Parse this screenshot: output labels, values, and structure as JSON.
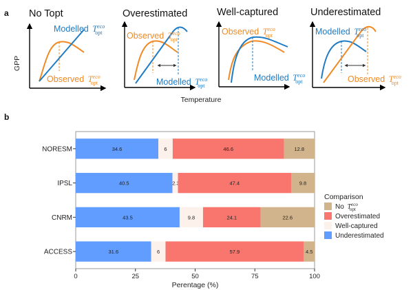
{
  "panel_a": {
    "label": "a",
    "y_axis_label": "GPP",
    "x_axis_label": "Temperature",
    "colors": {
      "observed": "#f08a24",
      "modelled": "#1f7bc4",
      "arrow": "#333333"
    },
    "subplots": [
      {
        "title": "No Topt",
        "modelled_label": "Modelled",
        "observed_label": "Observed",
        "tex": "T",
        "sup": "eco",
        "sub": "opt"
      },
      {
        "title": "Overestimated",
        "modelled_label": "Modelled",
        "observed_label": "Observed",
        "tex": "T",
        "sup": "eco",
        "sub": "opt"
      },
      {
        "title": "Well-captured",
        "modelled_label": "Modelled",
        "observed_label": "Observed",
        "tex": "T",
        "sup": "eco",
        "sub": "opt"
      },
      {
        "title": "Underestimated",
        "modelled_label": "Modelled",
        "observed_label": "Observed",
        "tex": "T",
        "sup": "eco",
        "sub": "opt"
      }
    ]
  },
  "panel_b": {
    "label": "b"
  },
  "chart_data": {
    "type": "bar",
    "orientation": "horizontal",
    "stacked": true,
    "title": "",
    "xlabel": "Perentage (%)",
    "ylabel": "",
    "xlim": [
      0,
      100
    ],
    "xticks": [
      0,
      25,
      50,
      75,
      100
    ],
    "xtick_labels": [
      "0",
      "25",
      "50",
      "75",
      "100"
    ],
    "grid": false,
    "categories": [
      "NORESM",
      "IPSL",
      "CNRM",
      "ACCESS"
    ],
    "series": [
      {
        "name": "Underestimated",
        "color": "#619cff",
        "values": [
          34.6,
          40.5,
          43.5,
          31.6
        ]
      },
      {
        "name": "Well-captured",
        "color": "#fdf1ec",
        "values": [
          6,
          2.3,
          9.8,
          6
        ]
      },
      {
        "name": "Overestimated",
        "color": "#f8766d",
        "values": [
          46.6,
          47.4,
          24.1,
          57.9
        ]
      },
      {
        "name": "No T_opt^eco",
        "color": "#d2b48c",
        "values": [
          12.8,
          9.8,
          22.6,
          4.5
        ]
      }
    ],
    "legend": {
      "title": "Comparison",
      "placement": "right",
      "entries": [
        {
          "series": "No T_opt^eco",
          "text": "No",
          "tex": "T",
          "sup": "eco",
          "sub": "opt",
          "color": "#d2b48c"
        },
        {
          "series": "Overestimated",
          "text": "Overestimated",
          "color": "#f8766d"
        },
        {
          "series": "Well-captured",
          "text": "Well-captured",
          "color": "#fdf1ec"
        },
        {
          "series": "Underestimated",
          "text": "Underestimated",
          "color": "#619cff"
        }
      ]
    }
  }
}
